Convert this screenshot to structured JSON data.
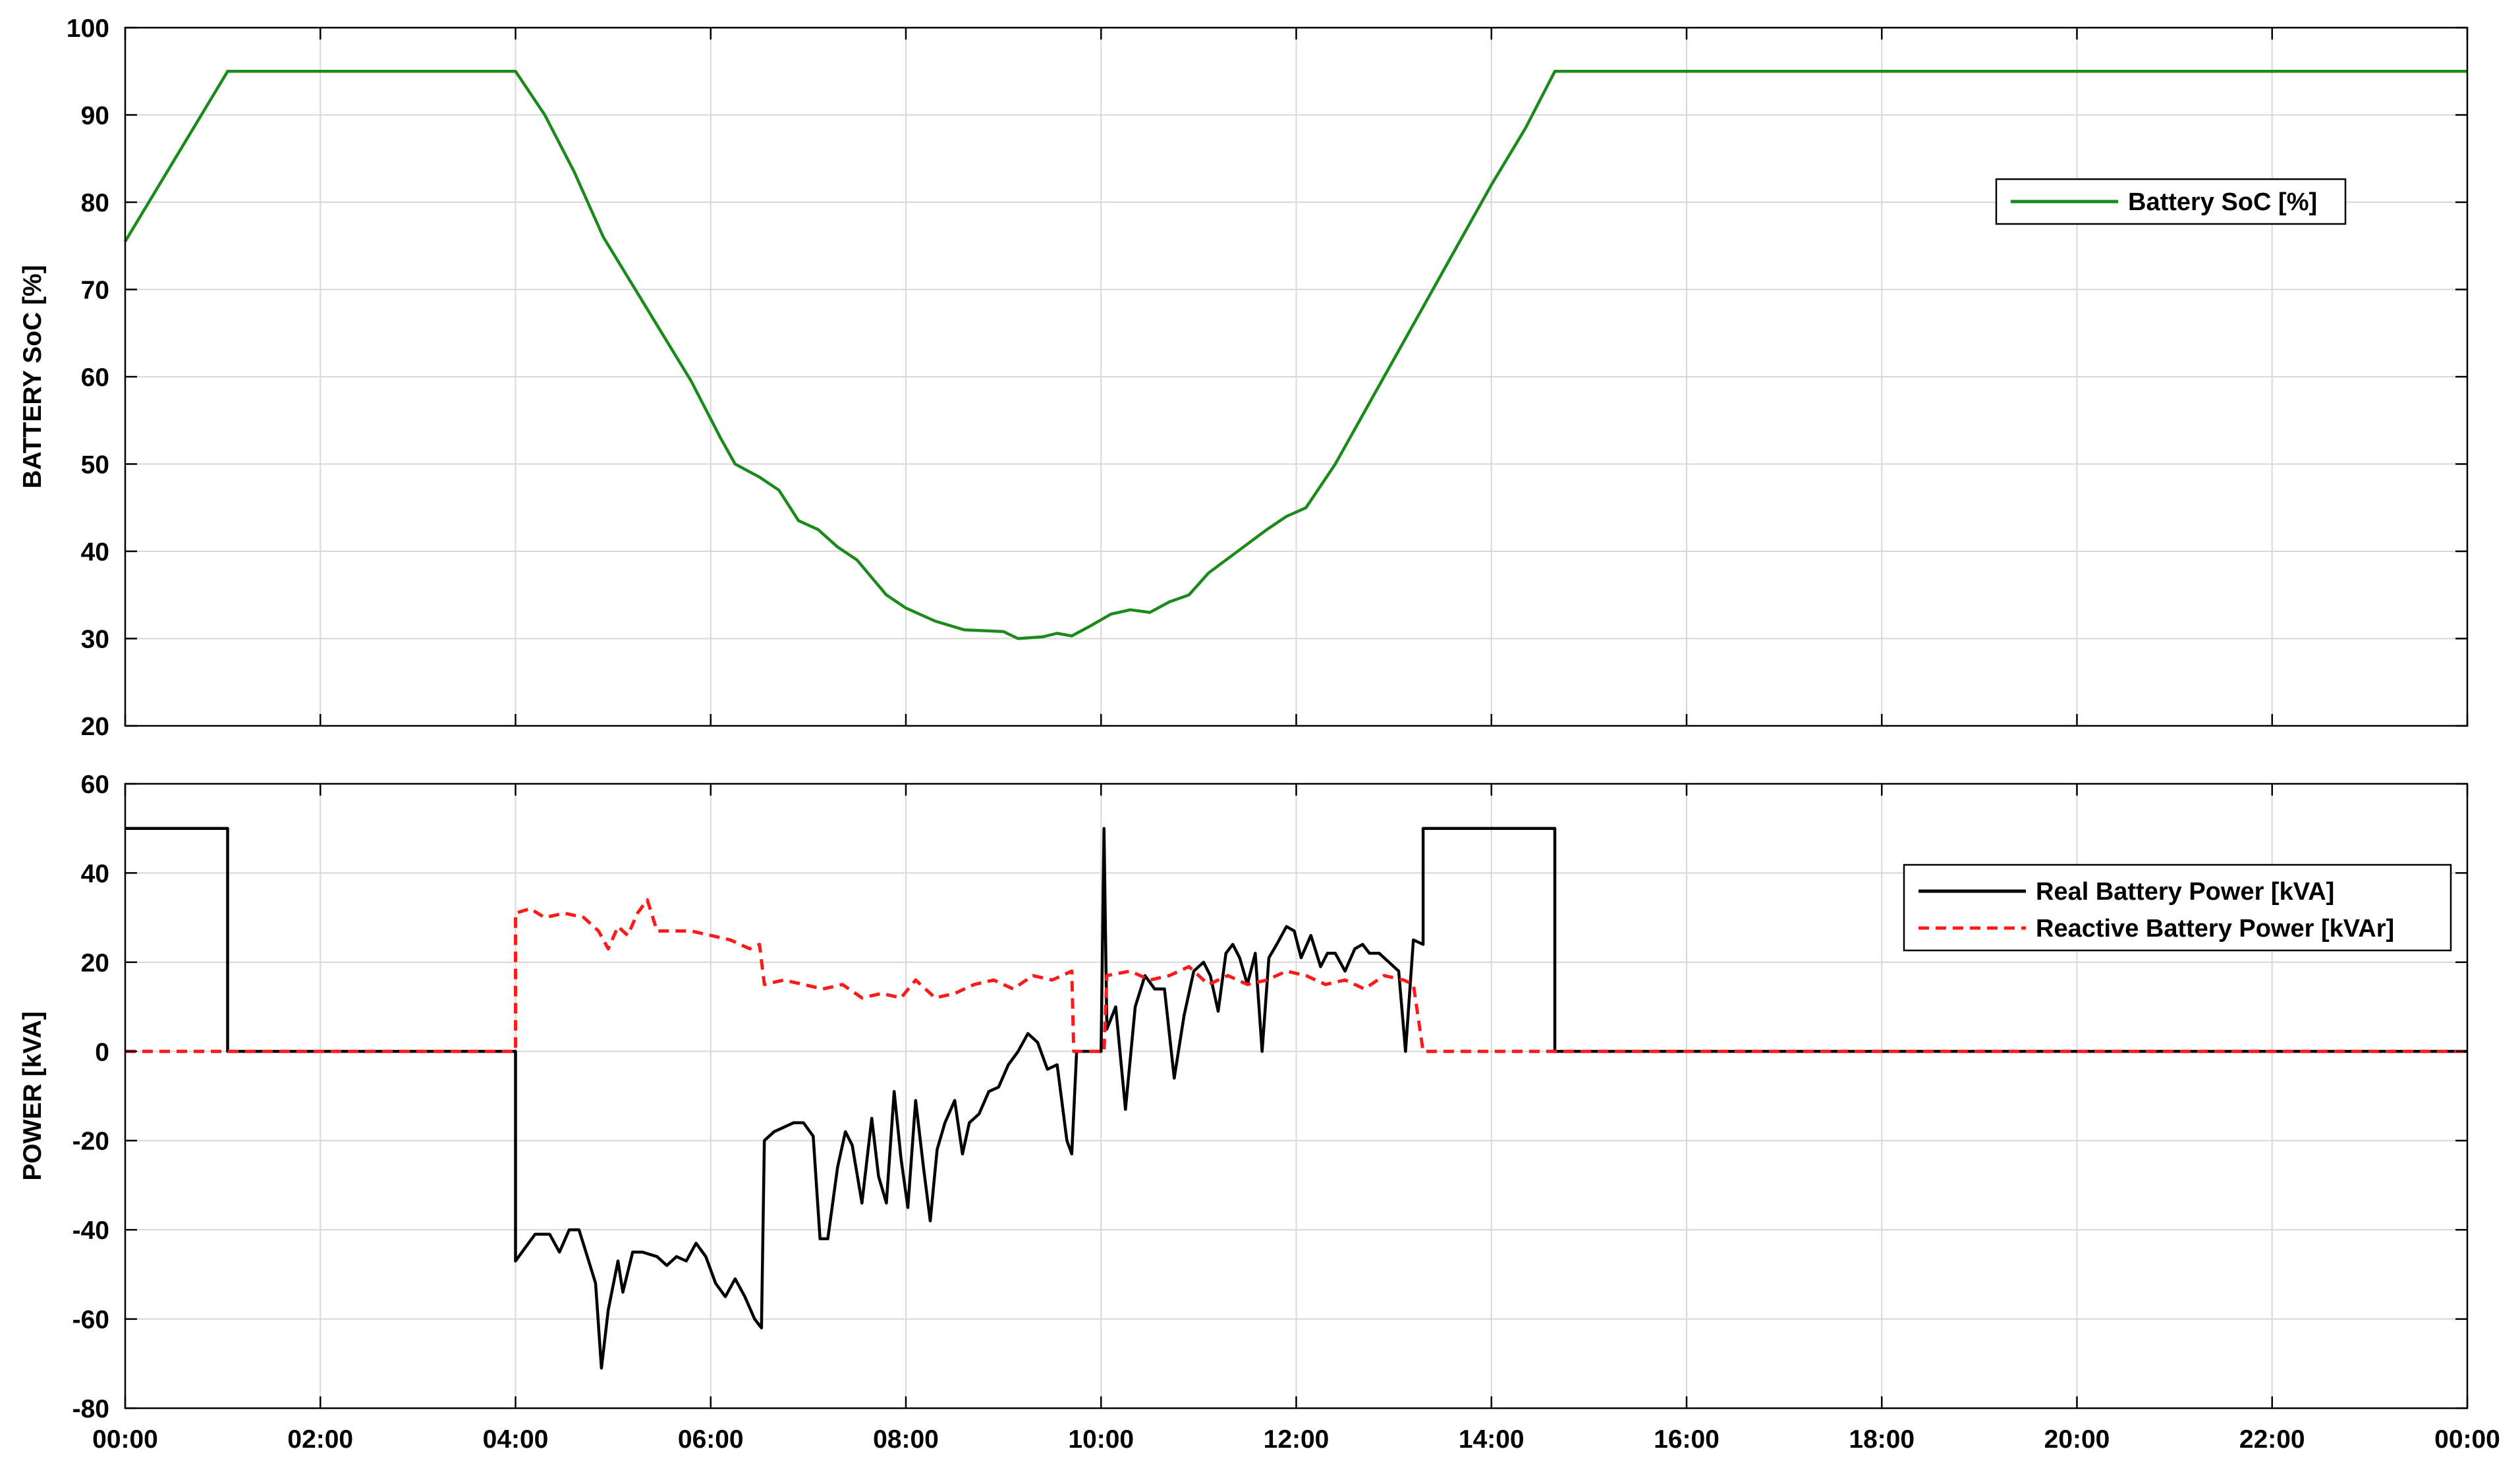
{
  "colors": {
    "soc": "#1a8a1a",
    "real_power": "#000000",
    "reactive_power": "#ff1a1a",
    "grid": "#d8d8d8"
  },
  "chart_data": [
    {
      "type": "line",
      "ylabel": "BATTERY SoC [%]",
      "xlabel": "",
      "ylim": [
        20,
        100
      ],
      "xlim": [
        0,
        24
      ],
      "yticks": [
        "20",
        "30",
        "40",
        "50",
        "60",
        "70",
        "80",
        "90",
        "100"
      ],
      "grid": true,
      "legend_position": "top-right",
      "series": [
        {
          "name": "Battery SoC [%]",
          "color": "#1a8a1a",
          "style": "solid",
          "points": [
            [
              0,
              75.5
            ],
            [
              1.05,
              95
            ],
            [
              4.0,
              95
            ],
            [
              4.3,
              90
            ],
            [
              4.6,
              83.5
            ],
            [
              4.9,
              76
            ],
            [
              5.2,
              70.5
            ],
            [
              5.5,
              65
            ],
            [
              5.8,
              59.5
            ],
            [
              6.1,
              53
            ],
            [
              6.25,
              50
            ],
            [
              6.5,
              48.5
            ],
            [
              6.7,
              47
            ],
            [
              6.9,
              43.5
            ],
            [
              7.1,
              42.5
            ],
            [
              7.3,
              40.5
            ],
            [
              7.5,
              39
            ],
            [
              7.8,
              35
            ],
            [
              8.0,
              33.5
            ],
            [
              8.3,
              32
            ],
            [
              8.6,
              31
            ],
            [
              9.0,
              30.8
            ],
            [
              9.15,
              30
            ],
            [
              9.4,
              30.2
            ],
            [
              9.55,
              30.6
            ],
            [
              9.7,
              30.3
            ],
            [
              9.9,
              31.5
            ],
            [
              10.1,
              32.8
            ],
            [
              10.3,
              33.3
            ],
            [
              10.5,
              33.0
            ],
            [
              10.7,
              34.2
            ],
            [
              10.9,
              35
            ],
            [
              11.1,
              37.5
            ],
            [
              11.4,
              40
            ],
            [
              11.7,
              42.5
            ],
            [
              11.9,
              44
            ],
            [
              12.1,
              45
            ],
            [
              12.4,
              50
            ],
            [
              12.8,
              58
            ],
            [
              13.2,
              66
            ],
            [
              13.6,
              74
            ],
            [
              14.0,
              82
            ],
            [
              14.35,
              88.5
            ],
            [
              14.65,
              95
            ],
            [
              24,
              95
            ]
          ]
        }
      ]
    },
    {
      "type": "line",
      "ylabel": "POWER [kVA]",
      "xlabel": "",
      "ylim": [
        -80,
        60
      ],
      "xlim": [
        0,
        24
      ],
      "yticks": [
        "-80",
        "-60",
        "-40",
        "-20",
        "0",
        "20",
        "40",
        "60"
      ],
      "xticks": [
        "00:00",
        "02:00",
        "04:00",
        "06:00",
        "08:00",
        "10:00",
        "12:00",
        "14:00",
        "16:00",
        "18:00",
        "20:00",
        "22:00",
        "00:00"
      ],
      "grid": true,
      "legend_position": "top-right",
      "series": [
        {
          "name": "Real Battery Power [kVA]",
          "color": "#000000",
          "style": "solid",
          "points": [
            [
              0,
              50
            ],
            [
              1.05,
              50
            ],
            [
              1.05,
              0
            ],
            [
              4.0,
              0
            ],
            [
              4.0,
              -47
            ],
            [
              4.1,
              -44
            ],
            [
              4.2,
              -41
            ],
            [
              4.35,
              -41
            ],
            [
              4.45,
              -45
            ],
            [
              4.55,
              -40
            ],
            [
              4.65,
              -40
            ],
            [
              4.75,
              -47
            ],
            [
              4.82,
              -52
            ],
            [
              4.88,
              -71
            ],
            [
              4.95,
              -58
            ],
            [
              5.05,
              -47
            ],
            [
              5.1,
              -54
            ],
            [
              5.2,
              -45
            ],
            [
              5.3,
              -45
            ],
            [
              5.45,
              -46
            ],
            [
              5.55,
              -48
            ],
            [
              5.65,
              -46
            ],
            [
              5.75,
              -47
            ],
            [
              5.85,
              -43
            ],
            [
              5.95,
              -46
            ],
            [
              6.05,
              -52
            ],
            [
              6.15,
              -55
            ],
            [
              6.25,
              -51
            ],
            [
              6.35,
              -55
            ],
            [
              6.45,
              -60
            ],
            [
              6.52,
              -62
            ],
            [
              6.55,
              -20
            ],
            [
              6.65,
              -18
            ],
            [
              6.75,
              -17
            ],
            [
              6.85,
              -16
            ],
            [
              6.95,
              -16
            ],
            [
              7.05,
              -19
            ],
            [
              7.12,
              -42
            ],
            [
              7.2,
              -42
            ],
            [
              7.3,
              -26
            ],
            [
              7.38,
              -18
            ],
            [
              7.45,
              -21
            ],
            [
              7.55,
              -34
            ],
            [
              7.65,
              -15
            ],
            [
              7.72,
              -28
            ],
            [
              7.8,
              -34
            ],
            [
              7.88,
              -9
            ],
            [
              7.95,
              -24
            ],
            [
              8.02,
              -35
            ],
            [
              8.1,
              -11
            ],
            [
              8.18,
              -26
            ],
            [
              8.25,
              -38
            ],
            [
              8.32,
              -22
            ],
            [
              8.4,
              -16
            ],
            [
              8.5,
              -11
            ],
            [
              8.58,
              -23
            ],
            [
              8.65,
              -16
            ],
            [
              8.75,
              -14
            ],
            [
              8.85,
              -9
            ],
            [
              8.95,
              -8
            ],
            [
              9.05,
              -3
            ],
            [
              9.15,
              0
            ],
            [
              9.25,
              4
            ],
            [
              9.35,
              2
            ],
            [
              9.45,
              -4
            ],
            [
              9.55,
              -3
            ],
            [
              9.65,
              -20
            ],
            [
              9.7,
              -23
            ],
            [
              9.75,
              0
            ],
            [
              10.0,
              0
            ],
            [
              10.03,
              50
            ],
            [
              10.06,
              5
            ],
            [
              10.15,
              10
            ],
            [
              10.25,
              -13
            ],
            [
              10.35,
              10
            ],
            [
              10.45,
              17
            ],
            [
              10.55,
              14
            ],
            [
              10.65,
              14
            ],
            [
              10.75,
              -6
            ],
            [
              10.85,
              8
            ],
            [
              10.95,
              18
            ],
            [
              11.05,
              20
            ],
            [
              11.12,
              17
            ],
            [
              11.2,
              9
            ],
            [
              11.28,
              22
            ],
            [
              11.35,
              24
            ],
            [
              11.42,
              21
            ],
            [
              11.5,
              15
            ],
            [
              11.58,
              22
            ],
            [
              11.65,
              0
            ],
            [
              11.72,
              21
            ],
            [
              11.8,
              24
            ],
            [
              11.9,
              28
            ],
            [
              11.98,
              27
            ],
            [
              12.05,
              21
            ],
            [
              12.15,
              26
            ],
            [
              12.25,
              19
            ],
            [
              12.32,
              22
            ],
            [
              12.4,
              22
            ],
            [
              12.5,
              18
            ],
            [
              12.6,
              23
            ],
            [
              12.68,
              24
            ],
            [
              12.75,
              22
            ],
            [
              12.85,
              22
            ],
            [
              12.95,
              20
            ],
            [
              13.05,
              18
            ],
            [
              13.12,
              0
            ],
            [
              13.2,
              25
            ],
            [
              13.3,
              24
            ],
            [
              13.3,
              50
            ],
            [
              14.65,
              50
            ],
            [
              14.65,
              0
            ],
            [
              24,
              0
            ]
          ]
        },
        {
          "name": "Reactive Battery Power [kVAr]",
          "color": "#ff1a1a",
          "style": "dashed",
          "points": [
            [
              0,
              0
            ],
            [
              4.0,
              0
            ],
            [
              4.0,
              31
            ],
            [
              4.15,
              32
            ],
            [
              4.3,
              30
            ],
            [
              4.5,
              31
            ],
            [
              4.7,
              30
            ],
            [
              4.85,
              27
            ],
            [
              4.95,
              23
            ],
            [
              5.05,
              28
            ],
            [
              5.15,
              26
            ],
            [
              5.25,
              31
            ],
            [
              5.35,
              34
            ],
            [
              5.45,
              27
            ],
            [
              5.6,
              27
            ],
            [
              5.8,
              27
            ],
            [
              6.0,
              26
            ],
            [
              6.2,
              25
            ],
            [
              6.4,
              23
            ],
            [
              6.5,
              24
            ],
            [
              6.55,
              15
            ],
            [
              6.75,
              16
            ],
            [
              6.95,
              15
            ],
            [
              7.15,
              14
            ],
            [
              7.35,
              15
            ],
            [
              7.55,
              12
            ],
            [
              7.75,
              13
            ],
            [
              7.95,
              12
            ],
            [
              8.1,
              16
            ],
            [
              8.3,
              12
            ],
            [
              8.5,
              13
            ],
            [
              8.7,
              15
            ],
            [
              8.9,
              16
            ],
            [
              9.1,
              14
            ],
            [
              9.3,
              17
            ],
            [
              9.5,
              16
            ],
            [
              9.7,
              18
            ],
            [
              9.72,
              0
            ],
            [
              10.03,
              0
            ],
            [
              10.06,
              17
            ],
            [
              10.3,
              18
            ],
            [
              10.5,
              16
            ],
            [
              10.7,
              17
            ],
            [
              10.9,
              19
            ],
            [
              11.1,
              15
            ],
            [
              11.3,
              17
            ],
            [
              11.5,
              15
            ],
            [
              11.7,
              16
            ],
            [
              11.9,
              18
            ],
            [
              12.1,
              17
            ],
            [
              12.3,
              15
            ],
            [
              12.5,
              16
            ],
            [
              12.7,
              14
            ],
            [
              12.9,
              17
            ],
            [
              13.1,
              16
            ],
            [
              13.2,
              15
            ],
            [
              13.3,
              0
            ],
            [
              24,
              0
            ]
          ]
        }
      ]
    }
  ]
}
